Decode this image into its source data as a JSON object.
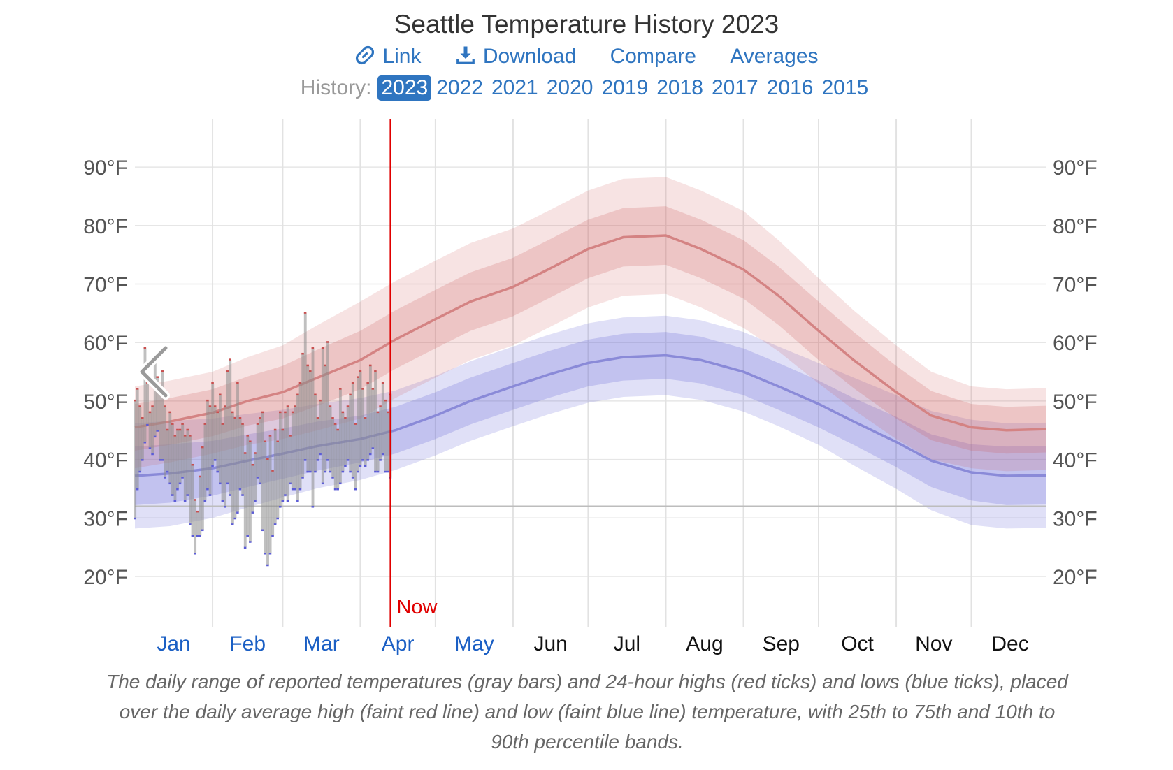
{
  "title": "Seattle Temperature History 2023",
  "links": {
    "link": "Link",
    "download": "Download",
    "compare": "Compare",
    "averages": "Averages"
  },
  "history": {
    "label": "History:",
    "selected": "2023",
    "years": [
      "2023",
      "2022",
      "2021",
      "2020",
      "2019",
      "2018",
      "2017",
      "2016",
      "2015"
    ]
  },
  "caption": "The daily range of reported temperatures (gray bars) and 24-hour highs (red ticks) and lows (blue ticks), placed over the daily average high (faint red line) and low (faint blue line) temperature, with 25th to 75th and 10th to 90th percentile bands.",
  "colors": {
    "accent": "#2f75c0",
    "now": "#e00000",
    "high": "#c84f4f",
    "low": "#5c5cd6",
    "bar": "#a6a6a6"
  },
  "icons": {
    "link": "link-icon",
    "download": "download-icon",
    "prev": "chevron-left-icon"
  },
  "chart_data": {
    "type": "area",
    "title": "Seattle Temperature History 2023",
    "ylim": [
      12,
      95
    ],
    "yticks": [
      20,
      30,
      40,
      50,
      60,
      70,
      80,
      90
    ],
    "ytick_labels": [
      "20°F",
      "30°F",
      "40°F",
      "50°F",
      "60°F",
      "70°F",
      "80°F",
      "90°F"
    ],
    "freezing_line": 32,
    "months": [
      "Jan",
      "Feb",
      "Mar",
      "Apr",
      "May",
      "Jun",
      "Jul",
      "Aug",
      "Sep",
      "Oct",
      "Nov",
      "Dec"
    ],
    "months_with_data": 5,
    "now_label": "Now",
    "now_day_of_year": 103,
    "avg_series": {
      "day_of_year": [
        1,
        15,
        32,
        46,
        60,
        74,
        91,
        105,
        121,
        135,
        152,
        166,
        182,
        196,
        213,
        227,
        244,
        258,
        274,
        288,
        305,
        319,
        335,
        349,
        365
      ],
      "high": [
        45.5,
        46.5,
        48.0,
        50.0,
        51.5,
        54.0,
        57.0,
        60.5,
        64.0,
        67.0,
        69.5,
        72.5,
        76.0,
        78.0,
        78.3,
        76.0,
        72.5,
        68.0,
        62.0,
        57.0,
        51.5,
        47.5,
        45.5,
        45.0,
        45.2
      ],
      "low": [
        37.2,
        37.6,
        38.5,
        39.8,
        41.0,
        42.3,
        43.5,
        45.0,
        47.5,
        50.0,
        52.5,
        54.5,
        56.5,
        57.5,
        57.8,
        57.0,
        55.0,
        52.5,
        49.5,
        46.5,
        43.0,
        39.8,
        37.8,
        37.2,
        37.3
      ],
      "high_band_25_75_halfwidth": [
        4,
        4,
        4,
        4.2,
        4.5,
        4.8,
        5,
        5,
        5,
        5,
        5,
        5,
        5,
        5,
        5,
        5,
        5,
        5,
        5,
        4.8,
        4.5,
        4.2,
        4,
        4,
        4
      ],
      "high_band_10_90_halfwidth": [
        7,
        7,
        7,
        7.5,
        8,
        9,
        10,
        10,
        10,
        10,
        10,
        10,
        10,
        10,
        10,
        10,
        10,
        9.5,
        9,
        8.5,
        8,
        7.5,
        7,
        7,
        7
      ],
      "low_band_25_75_halfwidth": [
        5,
        5,
        4.7,
        4.5,
        4.3,
        4.2,
        4,
        4,
        4,
        4,
        4,
        4,
        4,
        4,
        4,
        4,
        4,
        4,
        4,
        4,
        4.3,
        4.5,
        4.8,
        5,
        5
      ],
      "low_band_10_90_halfwidth": [
        9,
        9,
        8.5,
        8,
        7.5,
        7.2,
        7,
        6.8,
        6.8,
        6.8,
        6.8,
        6.8,
        6.8,
        6.8,
        6.8,
        6.8,
        6.8,
        6.8,
        7,
        7.5,
        8,
        8.5,
        9,
        9,
        9
      ]
    },
    "daily": {
      "day_of_year": [
        1,
        2,
        3,
        4,
        5,
        6,
        7,
        8,
        9,
        10,
        11,
        12,
        13,
        14,
        15,
        16,
        17,
        18,
        19,
        20,
        21,
        22,
        23,
        24,
        25,
        26,
        27,
        28,
        29,
        30,
        31,
        32,
        33,
        34,
        35,
        36,
        37,
        38,
        39,
        40,
        41,
        42,
        43,
        44,
        45,
        46,
        47,
        48,
        49,
        50,
        51,
        52,
        53,
        54,
        55,
        56,
        57,
        58,
        59,
        60,
        61,
        62,
        63,
        64,
        65,
        66,
        67,
        68,
        69,
        70,
        71,
        72,
        73,
        74,
        75,
        76,
        77,
        78,
        79,
        80,
        81,
        82,
        83,
        84,
        85,
        86,
        87,
        88,
        89,
        90,
        91,
        92,
        93,
        94,
        95,
        96,
        97,
        98,
        99,
        100,
        101,
        102,
        103
      ],
      "high": [
        50,
        52,
        49,
        47,
        59,
        53,
        48,
        49,
        57,
        54,
        52,
        55,
        49,
        45,
        48,
        46,
        44,
        45,
        45,
        46,
        44,
        45,
        44,
        39,
        33,
        31,
        37,
        42,
        46,
        50,
        49,
        53,
        49,
        48,
        51,
        46,
        49,
        55,
        57,
        48,
        47,
        53,
        47,
        46,
        41,
        44,
        43,
        39,
        41,
        46,
        47,
        48,
        43,
        40,
        44,
        38,
        45,
        43,
        48,
        45,
        48,
        49,
        44,
        48,
        49,
        51,
        53,
        58,
        65,
        56,
        55,
        59,
        51,
        47,
        50,
        59,
        56,
        60,
        49,
        47,
        46,
        45,
        52,
        48,
        47,
        49,
        51,
        53,
        46,
        54,
        55,
        52,
        47,
        53,
        56,
        52,
        55,
        48,
        49,
        53,
        50,
        48,
        51
      ],
      "low": [
        30,
        35,
        38,
        40,
        43,
        46,
        42,
        41,
        44,
        45,
        40,
        40,
        37,
        38,
        36,
        34,
        33,
        35,
        36,
        37,
        33,
        34,
        29,
        27,
        24,
        27,
        27,
        28,
        33,
        35,
        34,
        39,
        40,
        38,
        36,
        33,
        32,
        36,
        34,
        29,
        30,
        31,
        35,
        34,
        25,
        27,
        26,
        31,
        33,
        37,
        36,
        28,
        24,
        22,
        24,
        27,
        29,
        30,
        32,
        33,
        34,
        33,
        36,
        35,
        35,
        33,
        35,
        37,
        40,
        38,
        38,
        32,
        38,
        40,
        41,
        36,
        38,
        40,
        38,
        37,
        35,
        35,
        36,
        38,
        39,
        40,
        38,
        37,
        35,
        38,
        39,
        40,
        39,
        40,
        41,
        42,
        38,
        38,
        40,
        41,
        38,
        38,
        37
      ]
    }
  }
}
